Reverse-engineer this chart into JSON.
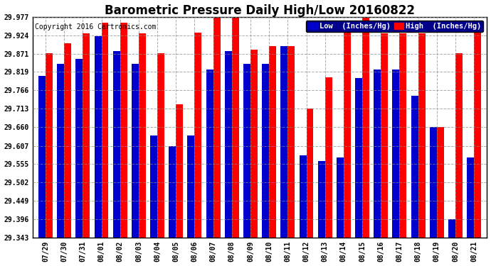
{
  "title": "Barometric Pressure Daily High/Low 20160822",
  "copyright": "Copyright 2016 Cartronics.com",
  "legend_low": "Low  (Inches/Hg)",
  "legend_high": "High  (Inches/Hg)",
  "dates": [
    "07/29",
    "07/30",
    "07/31",
    "08/01",
    "08/02",
    "08/03",
    "08/04",
    "08/05",
    "08/06",
    "08/07",
    "08/08",
    "08/09",
    "08/10",
    "08/11",
    "08/12",
    "08/13",
    "08/14",
    "08/15",
    "08/16",
    "08/17",
    "08/18",
    "08/19",
    "08/20",
    "08/21"
  ],
  "low": [
    29.808,
    29.843,
    29.857,
    29.921,
    29.878,
    29.843,
    29.637,
    29.607,
    29.637,
    29.825,
    29.878,
    29.843,
    29.843,
    29.892,
    29.58,
    29.563,
    29.573,
    29.802,
    29.825,
    29.825,
    29.751,
    29.66,
    29.396,
    29.573
  ],
  "high": [
    29.872,
    29.902,
    29.93,
    29.96,
    29.96,
    29.93,
    29.872,
    29.726,
    29.931,
    29.977,
    29.977,
    29.883,
    29.892,
    29.892,
    29.714,
    29.803,
    29.96,
    29.977,
    29.93,
    29.93,
    29.93,
    29.66,
    29.872,
    29.96
  ],
  "ylim_min": 29.343,
  "ylim_max": 29.977,
  "yticks": [
    29.343,
    29.396,
    29.449,
    29.502,
    29.555,
    29.607,
    29.66,
    29.713,
    29.766,
    29.819,
    29.871,
    29.924,
    29.977
  ],
  "bar_width": 0.38,
  "low_color": "#0000cc",
  "high_color": "#ff0000",
  "bg_color": "#ffffff",
  "grid_color": "#888888",
  "title_fontsize": 12,
  "copyright_fontsize": 7,
  "tick_fontsize": 7,
  "legend_fontsize": 7.5,
  "legend_bg": "#00008b"
}
